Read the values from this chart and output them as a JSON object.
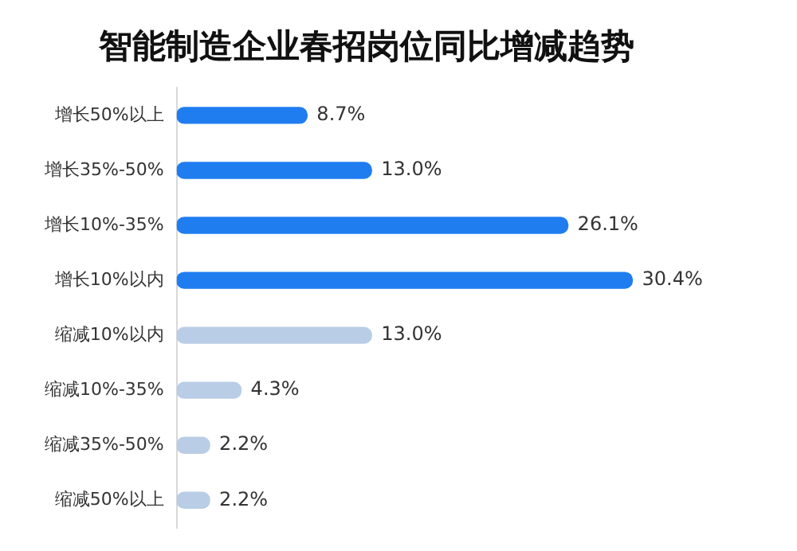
{
  "chart_data": {
    "type": "bar",
    "orientation": "horizontal",
    "title": "智能制造企业春招岗位同比增减趋势",
    "categories": [
      "增长50%以上",
      "增长35%-50%",
      "增长10%-35%",
      "增长10%以内",
      "缩减10%以内",
      "缩减10%-35%",
      "缩减35%-50%",
      "缩减50%以上"
    ],
    "values": [
      8.7,
      13.0,
      26.1,
      30.4,
      13.0,
      4.3,
      2.2,
      2.2
    ],
    "colors": [
      "#1f7df0",
      "#1f7df0",
      "#1f7df0",
      "#1f7df0",
      "#b9cde6",
      "#b9cde6",
      "#b9cde6",
      "#b9cde6"
    ],
    "value_labels": [
      "8.7%",
      "13.0%",
      "26.1%",
      "30.4%",
      "13.0%",
      "4.3%",
      "2.2%",
      "2.2%"
    ],
    "grid": false,
    "legend": false
  }
}
